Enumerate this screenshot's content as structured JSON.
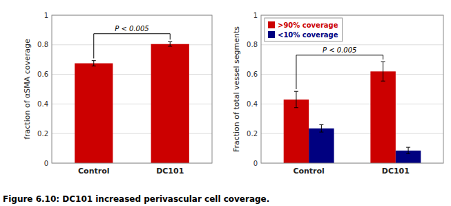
{
  "chart_data": [
    {
      "type": "bar",
      "categories": [
        "Control",
        "DC101"
      ],
      "values": [
        0.675,
        0.805
      ],
      "errors": [
        0.018,
        0.015
      ],
      "color": "#cc0000",
      "y_label": "fraction of αSMA coverage",
      "ylim": [
        0,
        1.0
      ],
      "yticks": [
        0,
        0.2,
        0.4,
        0.6,
        0.8,
        1
      ],
      "grid": true,
      "annotations": [
        {
          "text": "P < 0.005",
          "y": 0.875
        }
      ]
    },
    {
      "type": "bar",
      "categories": [
        "Control",
        "DC101"
      ],
      "series": [
        {
          "name": ">90% coverage",
          "color": "#cc0000",
          "values": [
            0.43,
            0.62
          ],
          "errors": [
            0.055,
            0.065
          ]
        },
        {
          "name": "<10% coverage",
          "color": "#000080",
          "values": [
            0.235,
            0.085
          ],
          "errors": [
            0.025,
            0.022
          ]
        }
      ],
      "y_label": "Fraction of total vessel segments",
      "ylim": [
        0,
        1.0
      ],
      "yticks": [
        0,
        0.2,
        0.4,
        0.6,
        0.8,
        1
      ],
      "grid": true,
      "legend": "upper left",
      "annotations": [
        {
          "text": "P < 0.005",
          "y": 0.73
        }
      ]
    }
  ],
  "caption": "Figure 6.10: DC101 increased perivascular cell coverage."
}
